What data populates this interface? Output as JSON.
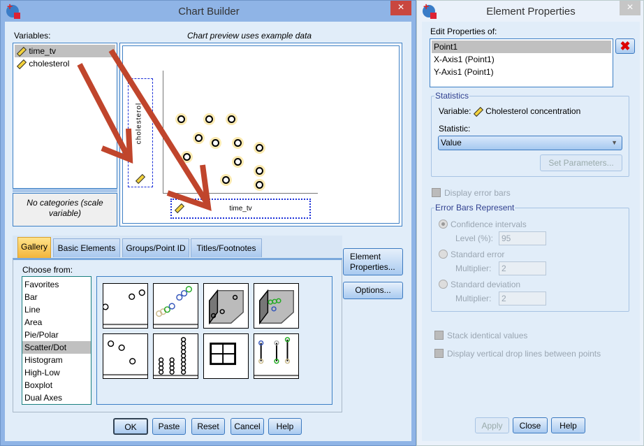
{
  "chart_builder": {
    "title": "Chart Builder",
    "variables_label": "Variables:",
    "variables": [
      {
        "name": "time_tv",
        "icon": "scale-ruler-icon",
        "selected": true
      },
      {
        "name": "cholesterol",
        "icon": "scale-ruler-icon",
        "selected": false
      }
    ],
    "categories_note": "No categories (scale variable)",
    "preview_note": "Chart preview uses example data",
    "y_axis_variable": "cholesterol",
    "x_axis_variable": "time_tv",
    "tabs": [
      {
        "label": "Gallery",
        "active": true
      },
      {
        "label": "Basic Elements"
      },
      {
        "label": "Groups/Point ID"
      },
      {
        "label": "Titles/Footnotes"
      }
    ],
    "choose_from_label": "Choose from:",
    "chart_types": [
      "Favorites",
      "Bar",
      "Line",
      "Area",
      "Pie/Polar",
      "Scatter/Dot",
      "Histogram",
      "High-Low",
      "Boxplot",
      "Dual Axes"
    ],
    "selected_chart_type": "Scatter/Dot",
    "gallery_thumbnails": [
      "simple-scatter",
      "grouped-scatter",
      "simple-3d-scatter",
      "grouped-3d-scatter",
      "summary-point-plot",
      "simple-dot-plot",
      "scatterplot-matrix",
      "drop-line"
    ],
    "side_buttons": {
      "element_properties": "Element Properties...",
      "options": "Options..."
    },
    "buttons": {
      "ok": "OK",
      "paste": "Paste",
      "reset": "Reset",
      "cancel": "Cancel",
      "help": "Help"
    },
    "close_icon": "×",
    "arrow_color": "#c0452c"
  },
  "element_properties": {
    "title": "Element Properties",
    "edit_label": "Edit Properties of:",
    "elements": [
      "Point1",
      "X-Axis1 (Point1)",
      "Y-Axis1 (Point1)"
    ],
    "selected_element": "Point1",
    "statistics_label": "Statistics",
    "variable_label": "Variable:",
    "variable_value": "Cholesterol concentration",
    "statistic_label": "Statistic:",
    "statistic_value": "Value",
    "set_parameters": "Set Parameters...",
    "display_error_bars": "Display error bars",
    "error_bars_group": "Error Bars Represent",
    "confidence_intervals": "Confidence intervals",
    "level_label": "Level (%):",
    "level_value": "95",
    "standard_error": "Standard error",
    "standard_deviation": "Standard deviation",
    "multiplier_label": "Multiplier:",
    "se_multiplier": "2",
    "sd_multiplier": "2",
    "stack_identical": "Stack identical values",
    "drop_lines": "Display vertical drop lines between points",
    "buttons": {
      "apply": "Apply",
      "close": "Close",
      "help": "Help"
    },
    "close_icon": "×"
  }
}
